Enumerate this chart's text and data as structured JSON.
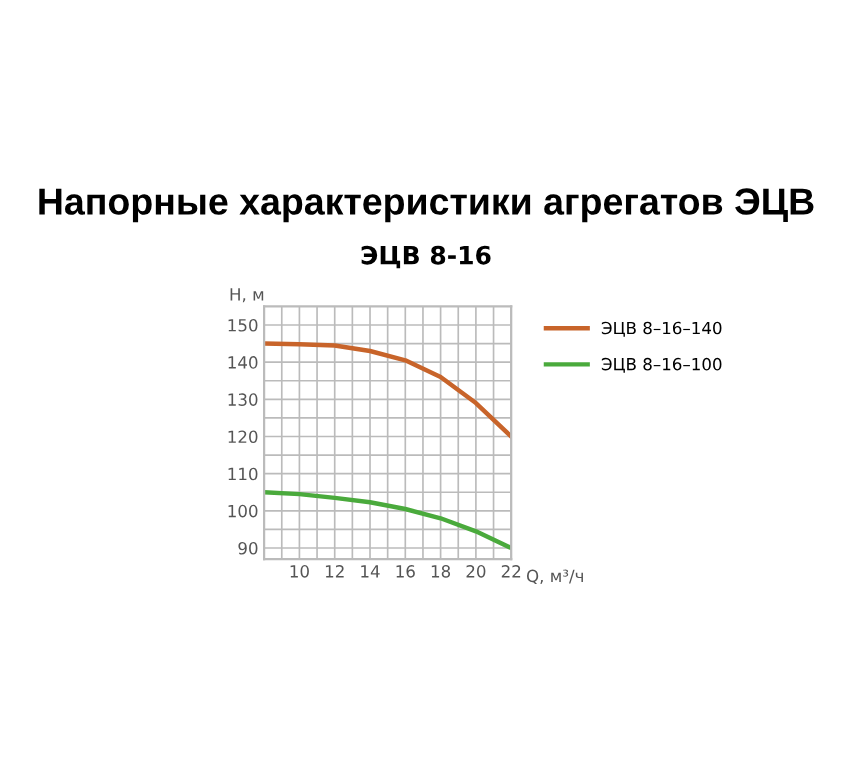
{
  "chart_data": {
    "type": "line",
    "title": "Напорные характеристики агрегатов ЭЦВ",
    "subtitle": "ЭЦВ 8-16",
    "xlabel": "Q, м³/ч",
    "ylabel": "H, м",
    "x": [
      8,
      10,
      12,
      14,
      16,
      18,
      20,
      22
    ],
    "series": [
      {
        "name": "ЭЦВ 8–16–140",
        "color": "#c8642a",
        "values": [
          145,
          144.8,
          144.5,
          143,
          140.5,
          136,
          129,
          120
        ]
      },
      {
        "name": "ЭЦВ 8–16–100",
        "color": "#4aaa3c",
        "values": [
          105,
          104.5,
          103.5,
          102.3,
          100.5,
          98,
          94.5,
          90
        ]
      }
    ],
    "xlim": [
      8,
      22
    ],
    "ylim": [
      87,
      155
    ],
    "xticks": [
      {
        "value": 9,
        "label": null
      },
      10,
      {
        "value": 11,
        "label": null
      },
      12,
      {
        "value": 13,
        "label": null
      },
      14,
      {
        "value": 15,
        "label": null
      },
      16,
      {
        "value": 17,
        "label": null
      },
      18,
      {
        "value": 19,
        "label": null
      },
      20,
      {
        "value": 21,
        "label": null
      },
      22
    ],
    "yticks": [
      90,
      {
        "value": 95,
        "label": null
      },
      100,
      {
        "value": 105,
        "label": null
      },
      110,
      {
        "value": 115,
        "label": null
      },
      120,
      {
        "value": 125,
        "label": null
      },
      130,
      {
        "value": 135,
        "label": null
      },
      140,
      {
        "value": 145,
        "label": null
      },
      150
    ],
    "grid": true,
    "legend": "right",
    "marker": "none",
    "line_style": "solid"
  }
}
